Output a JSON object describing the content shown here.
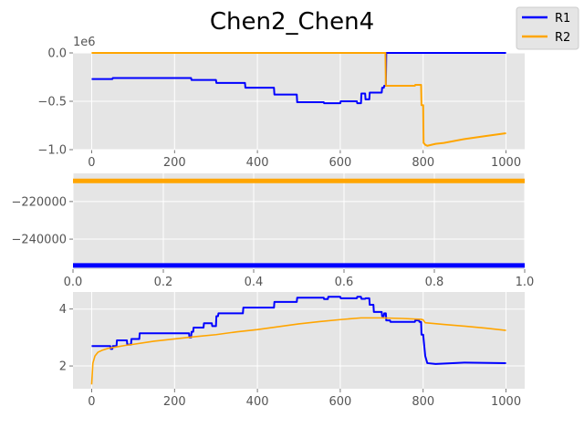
{
  "title": "Chen2_Chen4",
  "legend": {
    "placement": "top-right",
    "entries": [
      {
        "label": "R1",
        "color": "#0000ff"
      },
      {
        "label": "R2",
        "color": "#ffa500"
      }
    ]
  },
  "chart_data": [
    {
      "type": "line",
      "title": "Chen2_Chen4",
      "xlim": [
        -45,
        1045
      ],
      "ylim": [
        -1.0,
        0.0
      ],
      "y_multiplier_label": "1e6",
      "xticks": [
        0,
        200,
        400,
        600,
        800,
        1000
      ],
      "xtick_labels": [
        "0",
        "200",
        "400",
        "600",
        "800",
        "1000"
      ],
      "yticks": [
        0.0,
        -0.5,
        -1.0
      ],
      "ytick_labels": [
        "0.0",
        "−0.5",
        "−1.0"
      ],
      "grid": true,
      "series": [
        {
          "name": "R1",
          "color": "#0000ff",
          "x": [
            0,
            50,
            51,
            240,
            241,
            300,
            301,
            370,
            371,
            440,
            441,
            495,
            496,
            560,
            561,
            600,
            601,
            640,
            641,
            650,
            651,
            660,
            661,
            670,
            671,
            700,
            701,
            705,
            706,
            710,
            711,
            1000
          ],
          "y": [
            -0.27,
            -0.27,
            -0.26,
            -0.26,
            -0.28,
            -0.28,
            -0.31,
            -0.31,
            -0.36,
            -0.36,
            -0.43,
            -0.43,
            -0.51,
            -0.51,
            -0.52,
            -0.52,
            -0.5,
            -0.5,
            -0.52,
            -0.52,
            -0.42,
            -0.42,
            -0.48,
            -0.48,
            -0.41,
            -0.41,
            -0.36,
            -0.36,
            -0.34,
            -0.34,
            0.0,
            0.0
          ]
        },
        {
          "name": "R2",
          "color": "#ffa500",
          "x": [
            0,
            709,
            710,
            711,
            780,
            781,
            795,
            796,
            800,
            801,
            805,
            810,
            830,
            850,
            900,
            950,
            1000
          ],
          "y": [
            0.0,
            0.0,
            -0.34,
            -0.34,
            -0.34,
            -0.33,
            -0.33,
            -0.54,
            -0.54,
            -0.93,
            -0.95,
            -0.96,
            -0.94,
            -0.93,
            -0.89,
            -0.86,
            -0.83
          ]
        }
      ]
    },
    {
      "type": "line",
      "xlim": [
        0.0,
        1.0
      ],
      "ylim": [
        -256000,
        -205000
      ],
      "xticks": [
        0.0,
        0.2,
        0.4,
        0.6,
        0.8,
        1.0
      ],
      "xtick_labels": [
        "0.0",
        "0.2",
        "0.4",
        "0.6",
        "0.8",
        "1.0"
      ],
      "yticks": [
        -220000,
        -240000
      ],
      "ytick_labels": [
        "−220000",
        "−240000"
      ],
      "grid": true,
      "series": [
        {
          "name": "R1",
          "color": "#0000ff",
          "x": [
            0.0,
            1.0
          ],
          "y": [
            -254000,
            -254000
          ]
        },
        {
          "name": "R2",
          "color": "#ffa500",
          "x": [
            0.0,
            1.0
          ],
          "y": [
            -209000,
            -209000
          ]
        }
      ]
    },
    {
      "type": "line",
      "xlim": [
        -45,
        1045
      ],
      "ylim": [
        1.2,
        4.6
      ],
      "xticks": [
        0,
        200,
        400,
        600,
        800,
        1000
      ],
      "xtick_labels": [
        "0",
        "200",
        "400",
        "600",
        "800",
        "1000"
      ],
      "yticks": [
        2,
        4
      ],
      "ytick_labels": [
        "2",
        "4"
      ],
      "grid": true,
      "series": [
        {
          "name": "R1",
          "color": "#0000ff",
          "x": [
            0,
            45,
            46,
            50,
            51,
            60,
            61,
            85,
            86,
            95,
            96,
            115,
            116,
            235,
            236,
            240,
            241,
            245,
            246,
            270,
            271,
            290,
            291,
            300,
            301,
            305,
            306,
            365,
            366,
            440,
            441,
            495,
            496,
            560,
            561,
            570,
            571,
            600,
            601,
            640,
            641,
            650,
            651,
            660,
            661,
            670,
            671,
            680,
            681,
            700,
            701,
            705,
            706,
            710,
            711,
            720,
            721,
            780,
            781,
            790,
            791,
            795,
            796,
            800,
            805,
            810,
            830,
            900,
            1000
          ],
          "y": [
            2.7,
            2.7,
            2.6,
            2.6,
            2.7,
            2.7,
            2.9,
            2.9,
            2.75,
            2.75,
            2.95,
            2.95,
            3.15,
            3.15,
            3.0,
            3.0,
            3.2,
            3.2,
            3.35,
            3.35,
            3.5,
            3.5,
            3.4,
            3.4,
            3.75,
            3.75,
            3.85,
            3.85,
            4.05,
            4.05,
            4.25,
            4.25,
            4.4,
            4.4,
            4.35,
            4.35,
            4.43,
            4.43,
            4.38,
            4.38,
            4.43,
            4.43,
            4.36,
            4.36,
            4.38,
            4.38,
            4.15,
            4.15,
            3.9,
            3.9,
            3.75,
            3.75,
            3.85,
            3.85,
            3.6,
            3.6,
            3.55,
            3.55,
            3.6,
            3.6,
            3.55,
            3.55,
            3.1,
            3.1,
            2.35,
            2.1,
            2.07,
            2.12,
            2.1
          ]
        },
        {
          "name": "R2",
          "color": "#ffa500",
          "x": [
            0,
            3,
            8,
            15,
            25,
            40,
            60,
            80,
            100,
            150,
            200,
            250,
            300,
            350,
            400,
            450,
            500,
            550,
            600,
            650,
            700,
            750,
            795,
            800,
            805,
            850,
            900,
            950,
            1000
          ],
          "y": [
            1.35,
            2.1,
            2.35,
            2.48,
            2.55,
            2.62,
            2.67,
            2.72,
            2.76,
            2.87,
            2.95,
            3.03,
            3.1,
            3.2,
            3.28,
            3.38,
            3.48,
            3.56,
            3.63,
            3.69,
            3.69,
            3.67,
            3.64,
            3.62,
            3.52,
            3.46,
            3.4,
            3.33,
            3.25
          ]
        }
      ]
    }
  ]
}
